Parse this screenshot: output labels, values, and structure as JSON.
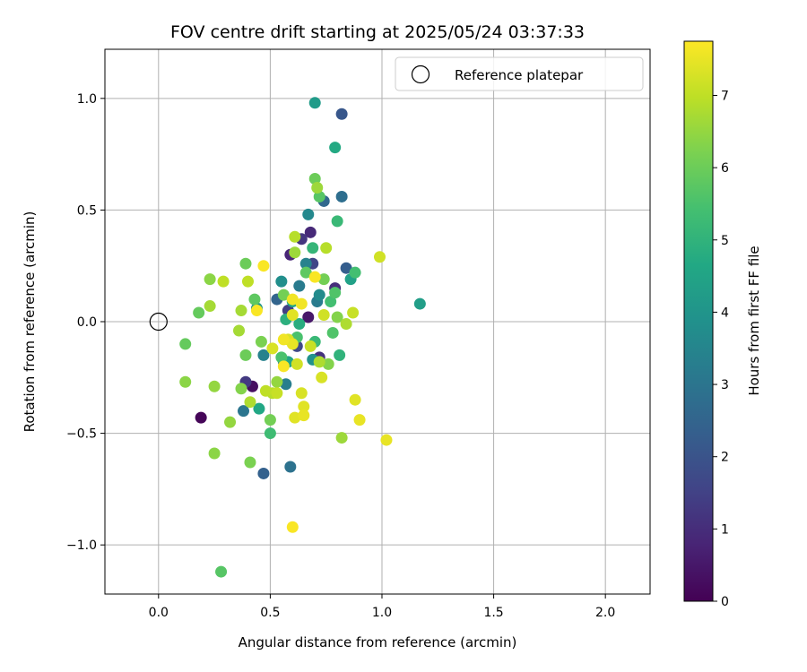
{
  "chart_data": {
    "type": "scatter",
    "title": "FOV centre drift starting at 2025/05/24 03:37:33",
    "xlabel": "Angular distance from reference (arcmin)",
    "ylabel": "Rotation from reference (arcmin)",
    "xlim": [
      -0.24,
      2.2
    ],
    "ylim": [
      -1.22,
      1.22
    ],
    "xticks": [
      0.0,
      0.5,
      1.0,
      1.5,
      2.0
    ],
    "xtick_labels": [
      "0.0",
      "0.5",
      "1.0",
      "1.5",
      "2.0"
    ],
    "yticks": [
      -1.0,
      -0.5,
      0.0,
      0.5,
      1.0
    ],
    "ytick_labels": [
      "−1.0",
      "−0.5",
      "0.0",
      "0.5",
      "1.0"
    ],
    "grid": true,
    "legend": {
      "label": "Reference platepar",
      "position": "top-right"
    },
    "reference_point": {
      "x": 0.0,
      "y": 0.0
    },
    "colorbar": {
      "label": "Hours from first FF file",
      "min": 0,
      "max": 7.75,
      "ticks": [
        0,
        1,
        2,
        3,
        4,
        5,
        6,
        7
      ],
      "tick_labels": [
        "0",
        "1",
        "2",
        "3",
        "4",
        "5",
        "6",
        "7"
      ],
      "colormap": "viridis"
    },
    "points": [
      {
        "x": 0.19,
        "y": -0.43,
        "h": 0.1
      },
      {
        "x": 0.42,
        "y": -0.29,
        "h": 0.3
      },
      {
        "x": 0.67,
        "y": 0.02,
        "h": 0.5
      },
      {
        "x": 0.59,
        "y": 0.3,
        "h": 0.8
      },
      {
        "x": 0.68,
        "y": 0.4,
        "h": 0.9
      },
      {
        "x": 0.79,
        "y": 0.15,
        "h": 1.0
      },
      {
        "x": 0.72,
        "y": -0.16,
        "h": 1.1
      },
      {
        "x": 0.64,
        "y": 0.37,
        "h": 1.2
      },
      {
        "x": 0.39,
        "y": -0.27,
        "h": 1.3
      },
      {
        "x": 0.58,
        "y": 0.05,
        "h": 1.4
      },
      {
        "x": 0.69,
        "y": 0.26,
        "h": 1.6
      },
      {
        "x": 0.62,
        "y": -0.11,
        "h": 1.7
      },
      {
        "x": 0.82,
        "y": 0.93,
        "h": 2.1
      },
      {
        "x": 0.84,
        "y": 0.24,
        "h": 2.3
      },
      {
        "x": 0.47,
        "y": -0.68,
        "h": 2.4
      },
      {
        "x": 0.53,
        "y": 0.1,
        "h": 2.5
      },
      {
        "x": 0.74,
        "y": 0.54,
        "h": 2.6
      },
      {
        "x": 0.82,
        "y": 0.56,
        "h": 2.8
      },
      {
        "x": 0.59,
        "y": -0.65,
        "h": 2.9
      },
      {
        "x": 0.38,
        "y": -0.4,
        "h": 3.0
      },
      {
        "x": 0.56,
        "y": -0.18,
        "h": 3.1
      },
      {
        "x": 0.63,
        "y": 0.16,
        "h": 3.2
      },
      {
        "x": 0.71,
        "y": 0.09,
        "h": 3.2
      },
      {
        "x": 0.57,
        "y": -0.28,
        "h": 3.3
      },
      {
        "x": 0.47,
        "y": -0.15,
        "h": 3.4
      },
      {
        "x": 0.66,
        "y": 0.26,
        "h": 3.4
      },
      {
        "x": 0.67,
        "y": 0.48,
        "h": 3.6
      },
      {
        "x": 0.72,
        "y": 0.12,
        "h": 3.7
      },
      {
        "x": 0.55,
        "y": 0.18,
        "h": 3.8
      },
      {
        "x": 0.69,
        "y": -0.17,
        "h": 3.9
      },
      {
        "x": 0.44,
        "y": 0.06,
        "h": 4.0
      },
      {
        "x": 0.7,
        "y": 0.98,
        "h": 4.2
      },
      {
        "x": 1.17,
        "y": 0.08,
        "h": 4.3
      },
      {
        "x": 0.86,
        "y": 0.19,
        "h": 4.4
      },
      {
        "x": 0.58,
        "y": -0.18,
        "h": 4.5
      },
      {
        "x": 0.6,
        "y": 0.09,
        "h": 4.5
      },
      {
        "x": 0.45,
        "y": -0.39,
        "h": 4.6
      },
      {
        "x": 0.79,
        "y": 0.78,
        "h": 4.7
      },
      {
        "x": 0.63,
        "y": -0.01,
        "h": 4.8
      },
      {
        "x": 0.57,
        "y": 0.01,
        "h": 4.9
      },
      {
        "x": 0.81,
        "y": -0.15,
        "h": 5.0
      },
      {
        "x": 0.69,
        "y": 0.33,
        "h": 5.1
      },
      {
        "x": 0.7,
        "y": -0.09,
        "h": 5.2
      },
      {
        "x": 0.8,
        "y": 0.45,
        "h": 5.2
      },
      {
        "x": 0.5,
        "y": -0.5,
        "h": 5.3
      },
      {
        "x": 0.88,
        "y": 0.22,
        "h": 5.4
      },
      {
        "x": 0.77,
        "y": 0.09,
        "h": 5.4
      },
      {
        "x": 0.55,
        "y": -0.16,
        "h": 5.5
      },
      {
        "x": 0.62,
        "y": -0.07,
        "h": 5.5
      },
      {
        "x": 0.79,
        "y": 0.13,
        "h": 5.6
      },
      {
        "x": 0.78,
        "y": -0.05,
        "h": 5.6
      },
      {
        "x": 0.72,
        "y": 0.56,
        "h": 5.7
      },
      {
        "x": 0.28,
        "y": -1.12,
        "h": 5.7
      },
      {
        "x": 0.43,
        "y": 0.1,
        "h": 5.8
      },
      {
        "x": 0.66,
        "y": 0.22,
        "h": 5.8
      },
      {
        "x": 0.12,
        "y": -0.1,
        "h": 5.9
      },
      {
        "x": 0.18,
        "y": 0.04,
        "h": 5.9
      },
      {
        "x": 0.7,
        "y": 0.64,
        "h": 6.0
      },
      {
        "x": 0.39,
        "y": 0.26,
        "h": 6.0
      },
      {
        "x": 0.39,
        "y": -0.15,
        "h": 6.0
      },
      {
        "x": 0.74,
        "y": 0.19,
        "h": 6.1
      },
      {
        "x": 0.56,
        "y": 0.12,
        "h": 6.1
      },
      {
        "x": 0.5,
        "y": -0.44,
        "h": 6.1
      },
      {
        "x": 0.46,
        "y": -0.09,
        "h": 6.2
      },
      {
        "x": 0.41,
        "y": -0.63,
        "h": 6.2
      },
      {
        "x": 0.37,
        "y": -0.3,
        "h": 6.3
      },
      {
        "x": 0.76,
        "y": -0.19,
        "h": 6.3
      },
      {
        "x": 0.8,
        "y": 0.02,
        "h": 6.3
      },
      {
        "x": 0.23,
        "y": 0.19,
        "h": 6.4
      },
      {
        "x": 0.25,
        "y": -0.59,
        "h": 6.4
      },
      {
        "x": 0.12,
        "y": -0.27,
        "h": 6.4
      },
      {
        "x": 0.32,
        "y": -0.45,
        "h": 6.5
      },
      {
        "x": 0.53,
        "y": -0.27,
        "h": 6.5
      },
      {
        "x": 0.25,
        "y": -0.29,
        "h": 6.5
      },
      {
        "x": 0.71,
        "y": 0.6,
        "h": 6.6
      },
      {
        "x": 0.61,
        "y": 0.31,
        "h": 6.6
      },
      {
        "x": 0.82,
        "y": -0.52,
        "h": 6.6
      },
      {
        "x": 0.23,
        "y": 0.07,
        "h": 6.7
      },
      {
        "x": 0.36,
        "y": -0.04,
        "h": 6.7
      },
      {
        "x": 0.37,
        "y": 0.05,
        "h": 6.7
      },
      {
        "x": 0.41,
        "y": -0.36,
        "h": 6.8
      },
      {
        "x": 0.72,
        "y": -0.18,
        "h": 6.8
      },
      {
        "x": 0.84,
        "y": -0.01,
        "h": 6.8
      },
      {
        "x": 0.61,
        "y": 0.38,
        "h": 6.9
      },
      {
        "x": 0.75,
        "y": 0.33,
        "h": 6.9
      },
      {
        "x": 0.51,
        "y": -0.32,
        "h": 6.9
      },
      {
        "x": 0.29,
        "y": 0.18,
        "h": 7.0
      },
      {
        "x": 0.4,
        "y": 0.18,
        "h": 7.0
      },
      {
        "x": 0.48,
        "y": -0.31,
        "h": 7.0
      },
      {
        "x": 0.68,
        "y": -0.11,
        "h": 7.1
      },
      {
        "x": 0.87,
        "y": 0.04,
        "h": 7.1
      },
      {
        "x": 0.53,
        "y": -0.32,
        "h": 7.1
      },
      {
        "x": 0.74,
        "y": 0.03,
        "h": 7.2
      },
      {
        "x": 0.62,
        "y": -0.19,
        "h": 7.2
      },
      {
        "x": 0.99,
        "y": 0.29,
        "h": 7.2
      },
      {
        "x": 0.58,
        "y": -0.08,
        "h": 7.3
      },
      {
        "x": 0.64,
        "y": -0.32,
        "h": 7.3
      },
      {
        "x": 0.73,
        "y": -0.25,
        "h": 7.3
      },
      {
        "x": 0.51,
        "y": -0.12,
        "h": 7.3
      },
      {
        "x": 0.61,
        "y": -0.43,
        "h": 7.4
      },
      {
        "x": 0.65,
        "y": -0.38,
        "h": 7.4
      },
      {
        "x": 0.88,
        "y": -0.35,
        "h": 7.4
      },
      {
        "x": 0.6,
        "y": 0.03,
        "h": 7.4
      },
      {
        "x": 0.65,
        "y": -0.42,
        "h": 7.5
      },
      {
        "x": 0.9,
        "y": -0.44,
        "h": 7.5
      },
      {
        "x": 1.02,
        "y": -0.53,
        "h": 7.5
      },
      {
        "x": 0.6,
        "y": -0.1,
        "h": 7.5
      },
      {
        "x": 0.64,
        "y": 0.08,
        "h": 7.6
      },
      {
        "x": 0.6,
        "y": 0.1,
        "h": 7.6
      },
      {
        "x": 0.56,
        "y": -0.08,
        "h": 7.6
      },
      {
        "x": 0.47,
        "y": 0.25,
        "h": 7.7
      },
      {
        "x": 0.56,
        "y": -0.2,
        "h": 7.7
      },
      {
        "x": 0.6,
        "y": -0.92,
        "h": 7.7
      },
      {
        "x": 0.7,
        "y": 0.2,
        "h": 7.7
      },
      {
        "x": 0.44,
        "y": 0.05,
        "h": 7.7
      }
    ]
  }
}
